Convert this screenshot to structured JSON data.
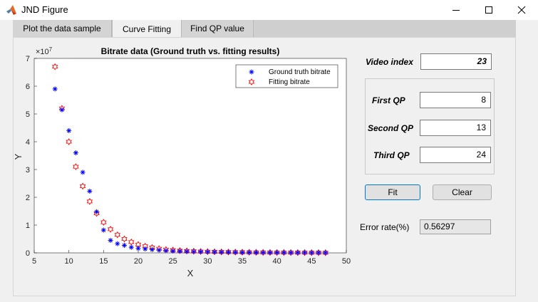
{
  "window": {
    "title": "JND Figure",
    "icon": "matlab-logo-icon"
  },
  "tabs": [
    {
      "label": "Plot the data sample",
      "active": false
    },
    {
      "label": "Curve Fitting",
      "active": true
    },
    {
      "label": "Find QP value",
      "active": false
    }
  ],
  "controls": {
    "video_index_label": "Video index",
    "video_index_value": "23",
    "first_qp_label": "First QP",
    "first_qp_value": "8",
    "second_qp_label": "Second QP",
    "second_qp_value": "13",
    "third_qp_label": "Third QP",
    "third_qp_value": "24",
    "fit_button": "Fit",
    "clear_button": "Clear",
    "error_rate_label": "Error rate(%)",
    "error_rate_value": "0.56297"
  },
  "chart_data": {
    "type": "scatter",
    "title": "Bitrate data (Ground truth vs. fitting results)",
    "xlabel": "X",
    "ylabel": "Y",
    "xlim": [
      5,
      50
    ],
    "ylim": [
      0,
      7
    ],
    "y_exponent": "×10",
    "y_exponent_power": "7",
    "x_ticks": [
      5,
      10,
      15,
      20,
      25,
      30,
      35,
      40,
      45,
      50
    ],
    "y_ticks": [
      0,
      1,
      2,
      3,
      4,
      5,
      6,
      7
    ],
    "legend_position": "top-right",
    "series": [
      {
        "name": "Ground truth bitrate",
        "marker": "asterisk",
        "color": "#0000ff",
        "x": [
          8,
          9,
          10,
          11,
          12,
          13,
          14,
          15,
          16,
          17,
          18,
          19,
          20,
          21,
          22,
          23,
          24,
          25,
          26,
          27,
          28,
          29,
          30,
          31,
          32,
          33,
          34,
          35,
          36,
          37,
          38,
          39,
          40,
          41,
          42,
          43,
          44,
          45,
          46,
          47
        ],
        "y": [
          5.9,
          5.15,
          4.4,
          3.6,
          2.9,
          2.22,
          1.48,
          0.82,
          0.45,
          0.33,
          0.27,
          0.2,
          0.16,
          0.14,
          0.12,
          0.1,
          0.08,
          0.07,
          0.06,
          0.05,
          0.045,
          0.04,
          0.035,
          0.03,
          0.027,
          0.024,
          0.021,
          0.019,
          0.017,
          0.015,
          0.013,
          0.012,
          0.011,
          0.01,
          0.009,
          0.008,
          0.007,
          0.006,
          0.005,
          0.005
        ]
      },
      {
        "name": "Fitting bitrate",
        "marker": "hexagram",
        "color": "#ff0000",
        "x": [
          8,
          9,
          10,
          11,
          12,
          13,
          14,
          15,
          16,
          17,
          18,
          19,
          20,
          21,
          22,
          23,
          24,
          25,
          26,
          27,
          28,
          29,
          30,
          31,
          32,
          33,
          34,
          35,
          36,
          37,
          38,
          39,
          40,
          41,
          42,
          43,
          44,
          45,
          46,
          47
        ],
        "y": [
          6.7,
          5.2,
          4.0,
          3.1,
          2.4,
          1.85,
          1.42,
          1.1,
          0.85,
          0.65,
          0.5,
          0.39,
          0.3,
          0.24,
          0.19,
          0.15,
          0.12,
          0.1,
          0.08,
          0.07,
          0.06,
          0.05,
          0.045,
          0.04,
          0.035,
          0.03,
          0.027,
          0.024,
          0.021,
          0.019,
          0.017,
          0.015,
          0.013,
          0.012,
          0.011,
          0.01,
          0.009,
          0.008,
          0.007,
          0.006
        ]
      }
    ]
  }
}
